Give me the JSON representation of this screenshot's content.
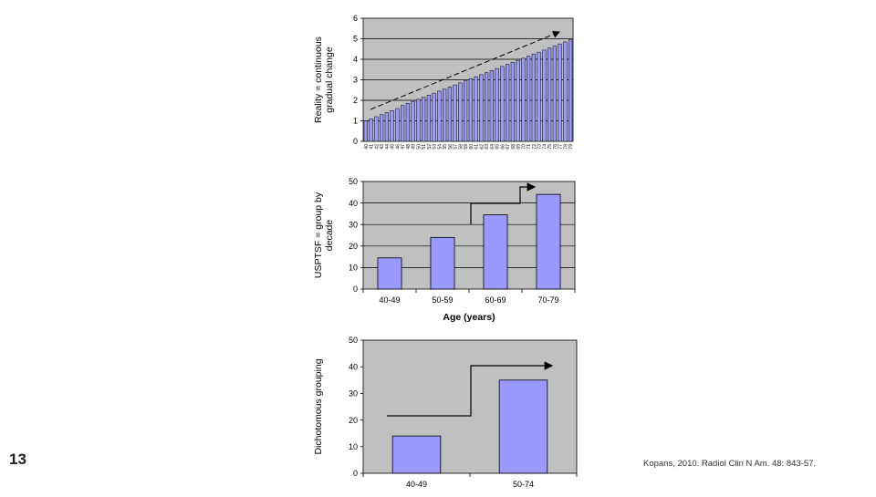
{
  "slide_number": "13",
  "citation": "Kopans, 2010. Radiol Clin N Am. 48: 843-57.",
  "colors": {
    "plot_bg": "#c0c0c0",
    "bar_fill": "#9999ff",
    "bar_stroke": "#000000",
    "grid": "#000000"
  },
  "chart_data": [
    {
      "type": "bar",
      "ylabel_lines": [
        "Reality = continuous",
        "gradual change"
      ],
      "ylim": [
        0,
        6
      ],
      "yticks": [
        0,
        1,
        2,
        3,
        4,
        5,
        6
      ],
      "grid": true,
      "categories": [
        "40",
        "41",
        "42",
        "43",
        "44",
        "45",
        "46",
        "47",
        "48",
        "49",
        "50",
        "51",
        "52",
        "53",
        "54",
        "55",
        "56",
        "57",
        "58",
        "59",
        "60",
        "61",
        "62",
        "63",
        "64",
        "65",
        "66",
        "67",
        "68",
        "69",
        "70",
        "71",
        "72",
        "73",
        "74",
        "75",
        "76",
        "77",
        "78",
        "79"
      ],
      "values": [
        1.0,
        1.1,
        1.2,
        1.3,
        1.4,
        1.5,
        1.6,
        1.75,
        1.85,
        1.95,
        2.05,
        2.15,
        2.25,
        2.35,
        2.45,
        2.55,
        2.65,
        2.75,
        2.85,
        2.95,
        3.05,
        3.15,
        3.25,
        3.35,
        3.45,
        3.55,
        3.65,
        3.75,
        3.85,
        3.95,
        4.05,
        4.15,
        4.25,
        4.35,
        4.45,
        4.55,
        4.65,
        4.75,
        4.85,
        4.95
      ]
    },
    {
      "type": "bar",
      "ylabel_lines": [
        "USPTSF = group by",
        "decade"
      ],
      "xlabel": "Age (years)",
      "ylim": [
        0,
        50
      ],
      "yticks": [
        0,
        10,
        20,
        30,
        40,
        50
      ],
      "grid": true,
      "categories": [
        "40-49",
        "50-59",
        "60-69",
        "70-79"
      ],
      "values": [
        14.5,
        24,
        34.5,
        44
      ]
    },
    {
      "type": "bar",
      "ylabel_lines": [
        "Dichotomous grouping"
      ],
      "ylim": [
        0,
        50
      ],
      "yticks": [
        0,
        10,
        20,
        30,
        40,
        50
      ],
      "grid": false,
      "categories": [
        "40-49",
        "50-74"
      ],
      "values": [
        14,
        35
      ]
    }
  ]
}
